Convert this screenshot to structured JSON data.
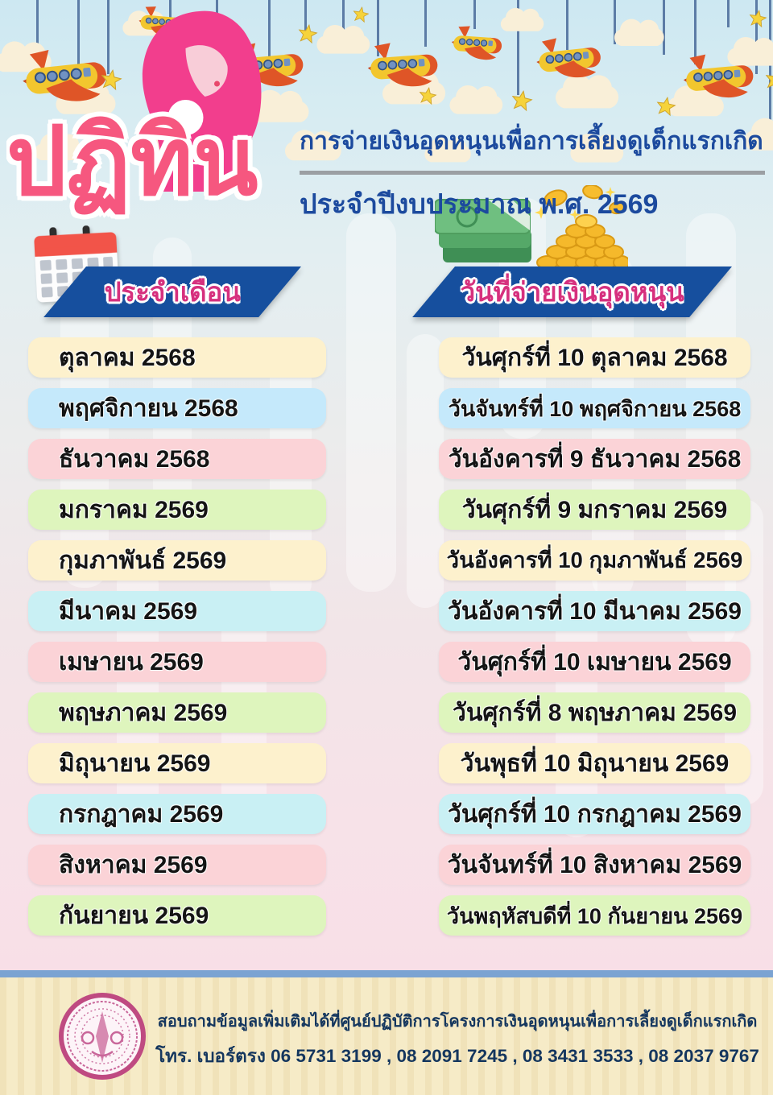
{
  "poster": {
    "brand_word": "ปฏิทิน",
    "title": "การจ่ายเงินอุดหนุนเพื่อการเลี้ยงดูเด็กแรกเกิด",
    "subtitle": "ประจำปีงบประมาณ พ.ศ. 2569"
  },
  "table": {
    "month_header": "ประจำเดือน",
    "payday_header": "วันที่จ่ายเงินอุดหนุน",
    "rows": [
      {
        "month": "ตุลาคม 2568",
        "payday": "วันศุกร์ที่ 10 ตุลาคม 2568",
        "color": "#fdf1cd"
      },
      {
        "month": "พฤศจิกายน 2568",
        "payday": "วันจันทร์ที่ 10 พฤศจิกายน 2568",
        "color": "#c5e9fb"
      },
      {
        "month": "ธันวาคม 2568",
        "payday": "วันอังคารที่ 9 ธันวาคม 2568",
        "color": "#fbd3d7"
      },
      {
        "month": "มกราคม 2569",
        "payday": "วันศุกร์ที่ 9 มกราคม 2569",
        "color": "#def5bd"
      },
      {
        "month": "กุมภาพันธ์ 2569",
        "payday": "วันอังคารที่ 10 กุมภาพันธ์ 2569",
        "color": "#fdf1cd"
      },
      {
        "month": "มีนาคม 2569",
        "payday": "วันอังคารที่ 10 มีนาคม 2569",
        "color": "#c9f0f4"
      },
      {
        "month": "เมษายน 2569",
        "payday": "วันศุกร์ที่ 10 เมษายน 2569",
        "color": "#fbd3d7"
      },
      {
        "month": "พฤษภาคม 2569",
        "payday": "วันศุกร์ที่ 8 พฤษภาคม 2569",
        "color": "#def5bd"
      },
      {
        "month": "มิถุนายน 2569",
        "payday": "วันพุธที่ 10 มิถุนายน 2569",
        "color": "#fdf1cd"
      },
      {
        "month": "กรกฎาคม 2569",
        "payday": "วันศุกร์ที่ 10 กรกฎาคม 2569",
        "color": "#c9f0f4"
      },
      {
        "month": "สิงหาคม 2569",
        "payday": "วันจันทร์ที่ 10 สิงหาคม 2569",
        "color": "#fbd3d7"
      },
      {
        "month": "กันยายน 2569",
        "payday": "วันพฤหัสบดีที่ 10 กันยายน 2569",
        "color": "#def5bd"
      }
    ]
  },
  "footer": {
    "info_line": "สอบถามข้อมูลเพิ่มเติมได้ที่ศูนย์ปฏิบัติการโครงการเงินอุดหนุนเพื่อการเลี้ยงดูเด็กแรกเกิด",
    "phone_line": "โทร. เบอร์ตรง 06 5731 3199 , 08 2091 7245 , 08 3431 3533 , 08 2037 9767"
  },
  "colors": {
    "banner_blue": "#164f9e",
    "banner_text_pink": "#d6307e",
    "title_navy": "#1c4a9e",
    "brand_pink": "#f6577f",
    "row_text": "#141414",
    "footer_text_navy": "#14365e",
    "footer_bg": "#f6ebc7",
    "footer_divider_blue": "#7ba3d2",
    "row_yellow": "#fdf1cd",
    "row_blue": "#c5e9fb",
    "row_cyan": "#c9f0f4",
    "row_pink": "#fbd3d7",
    "row_green": "#def5bd"
  },
  "icons": [
    "mother-child-logo",
    "calendar-icon",
    "money-icon",
    "airplane-icon",
    "star-icon",
    "cloud-icon",
    "government-seal-logo"
  ]
}
